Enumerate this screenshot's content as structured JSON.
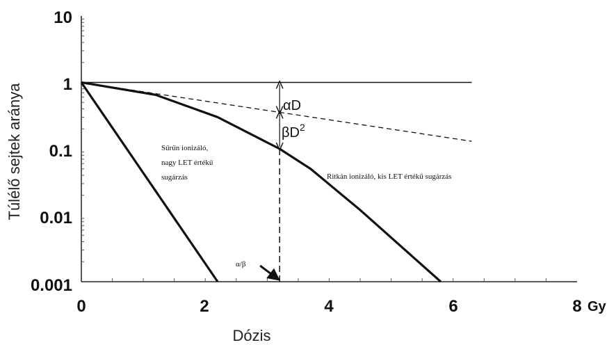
{
  "chart_data": {
    "type": "line",
    "xlabel": "Dózis",
    "ylabel": "Túlélő sejtek aránya",
    "x_unit": "Gy",
    "xlim": [
      0,
      8
    ],
    "ylim": [
      0.001,
      10
    ],
    "y_scale": "log",
    "x_ticks": [
      "0",
      "2",
      "4",
      "6",
      "8"
    ],
    "y_ticks": [
      "10",
      "1",
      "0.1",
      "0.01",
      "0.001"
    ],
    "grid": false,
    "series": [
      {
        "style": "solid-thick",
        "x": [
          0,
          2.2
        ],
        "y": [
          1,
          0.001
        ]
      },
      {
        "style": "solid-thick",
        "x": [
          0,
          1.2,
          2.2,
          3.2,
          3.7,
          4.5,
          5.8
        ],
        "y": [
          1,
          0.65,
          0.3,
          0.1,
          0.05,
          0.012,
          0.001
        ]
      },
      {
        "style": "dashed",
        "x": [
          0,
          6.3
        ],
        "y": [
          1,
          0.13
        ]
      },
      {
        "style": "solid-thin",
        "x": [
          0,
          6.3
        ],
        "y": [
          1,
          1
        ]
      }
    ],
    "annotations": {
      "alpha_d": "αD",
      "beta_d2_base": "βD",
      "beta_d2_sup": "2",
      "alpha_beta": "α/β",
      "dense_line1": "Sűrűn ionizáló,",
      "dense_line2": "nagy LET értékű",
      "dense_line3": "sugárzás",
      "sparse": "Ritkán ionizáló, kis  LET értékű sugárzás"
    },
    "alpha_beta_dose": 3.2
  }
}
